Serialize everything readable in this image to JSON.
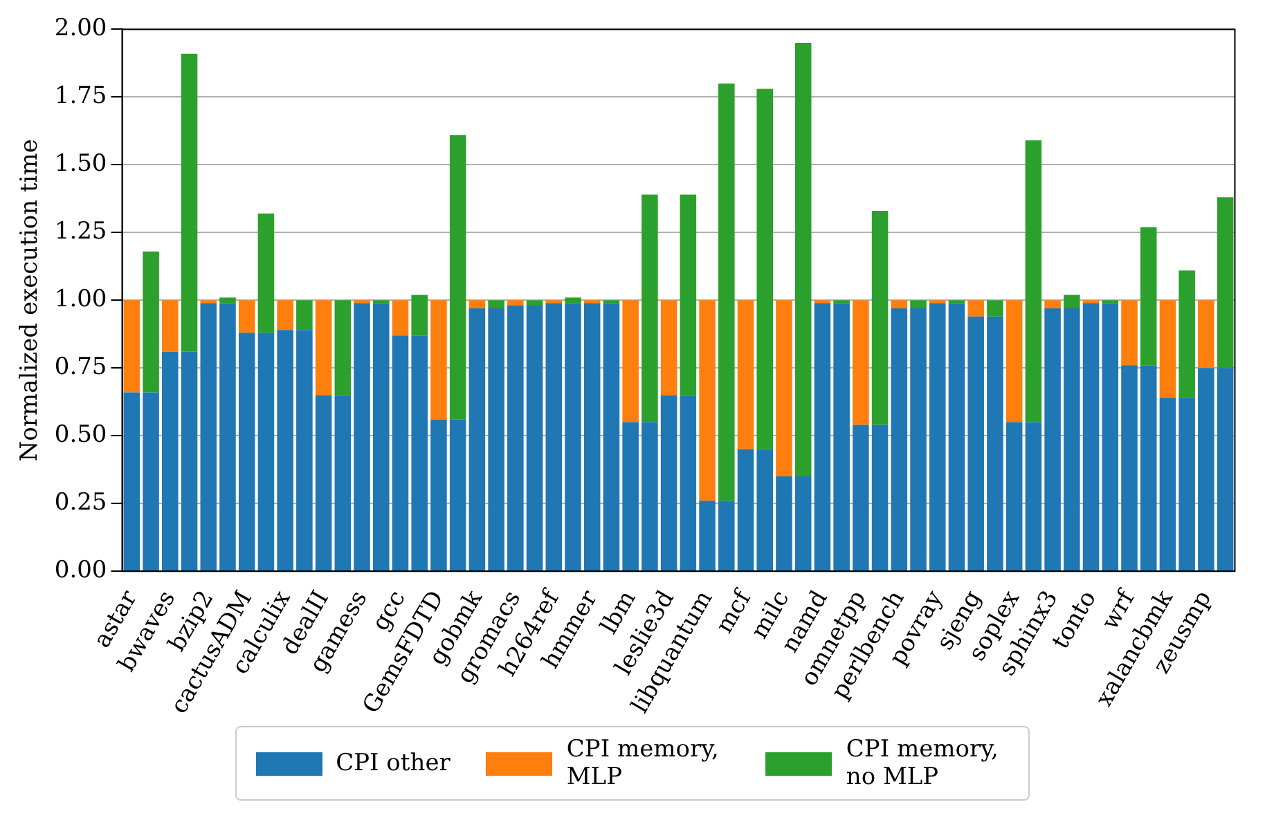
{
  "chart_data": {
    "type": "bar",
    "ylabel": "Normalized execution time",
    "categories": [
      "astar",
      null,
      "bwaves",
      null,
      "bzip2",
      null,
      "cactusADM",
      null,
      "calculix",
      null,
      "dealII",
      null,
      "gamess",
      null,
      "gcc",
      null,
      "GemsFDTD",
      null,
      "gobmk",
      null,
      "gromacs",
      null,
      "h264ref",
      null,
      "hmmer",
      null,
      "lbm",
      null,
      "leslie3d",
      null,
      "libquantum",
      null,
      "mcf",
      null,
      "milc",
      null,
      "namd",
      null,
      "omnetpp",
      null,
      "perlbench",
      null,
      "povray",
      null,
      "sjeng",
      null,
      "soplex",
      null,
      "sphinx3",
      null,
      "tonto",
      null,
      "wrf",
      null,
      "xalancbmk",
      null,
      "zeusmp",
      null
    ],
    "series": [
      {
        "name": "CPI other",
        "color": "#1f77b4",
        "values": [
          0.66,
          0.66,
          0.81,
          0.81,
          0.99,
          0.99,
          0.88,
          0.88,
          0.89,
          0.89,
          0.65,
          0.65,
          0.99,
          0.99,
          0.87,
          0.87,
          0.56,
          0.56,
          0.97,
          0.97,
          0.98,
          0.98,
          0.99,
          0.99,
          0.99,
          0.99,
          0.55,
          0.55,
          0.65,
          0.65,
          0.26,
          0.26,
          0.45,
          0.45,
          0.35,
          0.35,
          0.99,
          0.99,
          0.54,
          0.54,
          0.97,
          0.97,
          0.99,
          0.99,
          0.94,
          0.94,
          0.55,
          0.55,
          0.97,
          0.97,
          0.99,
          0.99,
          0.76,
          0.76,
          0.64,
          0.64,
          0.75,
          0.75
        ]
      },
      {
        "name": "CPI memory, MLP",
        "color": "#ff7f0e",
        "values": [
          0.34,
          null,
          0.19,
          null,
          0.01,
          null,
          0.12,
          null,
          0.11,
          null,
          0.35,
          null,
          0.01,
          null,
          0.13,
          null,
          0.44,
          null,
          0.03,
          null,
          0.02,
          null,
          0.01,
          null,
          0.01,
          null,
          0.45,
          null,
          0.35,
          null,
          0.74,
          null,
          0.55,
          null,
          0.65,
          null,
          0.01,
          null,
          0.46,
          null,
          0.03,
          null,
          0.01,
          null,
          0.06,
          null,
          0.45,
          null,
          0.03,
          null,
          0.01,
          null,
          0.24,
          null,
          0.36,
          null,
          0.25,
          null
        ]
      },
      {
        "name": "CPI memory, no MLP",
        "color": "#2ca02c",
        "values": [
          null,
          0.52,
          null,
          1.1,
          null,
          0.02,
          null,
          0.44,
          null,
          0.11,
          null,
          0.35,
          null,
          0.01,
          null,
          0.15,
          null,
          1.05,
          null,
          0.03,
          null,
          0.02,
          null,
          0.02,
          null,
          0.01,
          null,
          0.84,
          null,
          0.74,
          null,
          1.54,
          null,
          1.33,
          null,
          1.6,
          null,
          0.01,
          null,
          0.79,
          null,
          0.03,
          null,
          0.01,
          null,
          0.06,
          null,
          1.04,
          null,
          0.05,
          null,
          0.01,
          null,
          0.51,
          null,
          0.47,
          null,
          0.63
        ]
      }
    ],
    "stacked": true,
    "ylim": [
      0,
      2
    ],
    "yticks": [
      {
        "value": 0,
        "label": "0.00"
      },
      {
        "value": 0.25,
        "label": "0.25"
      },
      {
        "value": 0.5,
        "label": "0.50"
      },
      {
        "value": 0.75,
        "label": "0.75"
      },
      {
        "value": 1,
        "label": "1.00"
      },
      {
        "value": 1.25,
        "label": "1.25"
      },
      {
        "value": 1.5,
        "label": "1.50"
      },
      {
        "value": 1.75,
        "label": "1.75"
      },
      {
        "value": 2,
        "label": "2.00"
      }
    ],
    "grid": "y",
    "legend": "bottom"
  }
}
